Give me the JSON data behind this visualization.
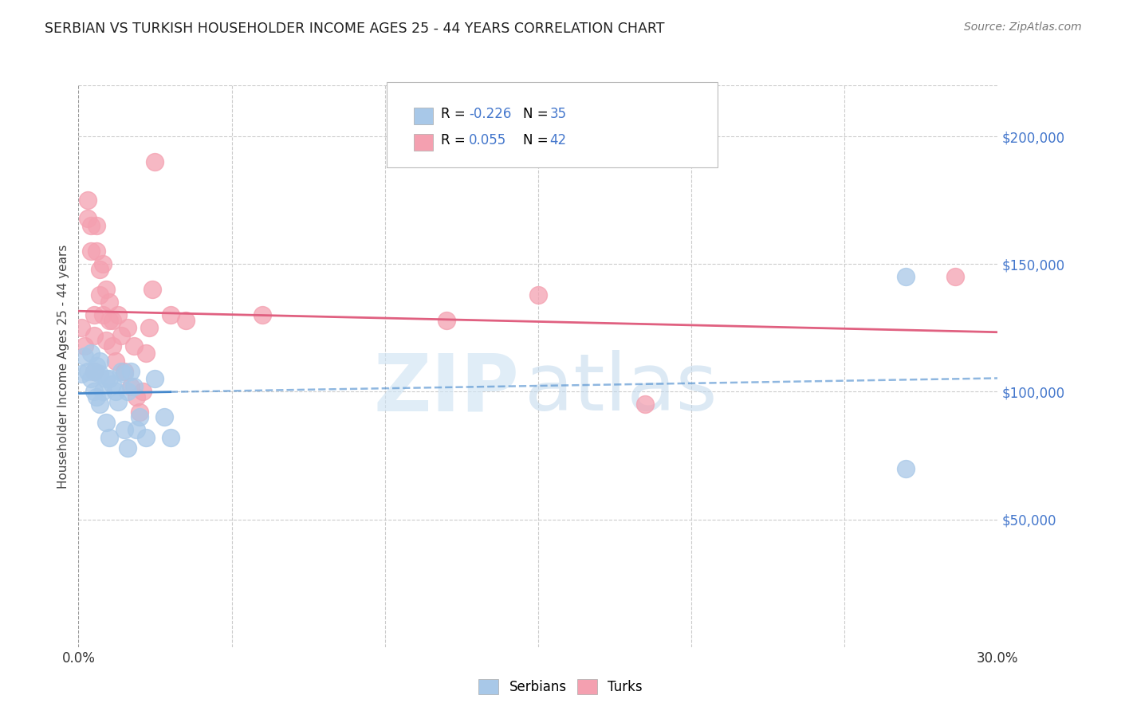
{
  "title": "SERBIAN VS TURKISH HOUSEHOLDER INCOME AGES 25 - 44 YEARS CORRELATION CHART",
  "source": "Source: ZipAtlas.com",
  "ylabel": "Householder Income Ages 25 - 44 years",
  "xlim": [
    0.0,
    0.3
  ],
  "ylim": [
    0,
    220000
  ],
  "yticks": [
    50000,
    100000,
    150000,
    200000
  ],
  "ytick_labels": [
    "$50,000",
    "$100,000",
    "$150,000",
    "$200,000"
  ],
  "serbian_color": "#a8c8e8",
  "turkish_color": "#f4a0b0",
  "serbian_line_color": "#4488cc",
  "turkish_line_color": "#e06080",
  "text_blue": "#4477cc",
  "background_color": "#ffffff",
  "grid_color": "#cccccc",
  "serbian_R": -0.226,
  "serbian_N": 35,
  "turkish_R": 0.055,
  "turkish_N": 42,
  "serbian_x": [
    0.001,
    0.002,
    0.003,
    0.004,
    0.004,
    0.005,
    0.005,
    0.006,
    0.006,
    0.007,
    0.007,
    0.007,
    0.008,
    0.009,
    0.009,
    0.01,
    0.01,
    0.011,
    0.012,
    0.013,
    0.014,
    0.015,
    0.015,
    0.016,
    0.016,
    0.017,
    0.018,
    0.019,
    0.02,
    0.022,
    0.025,
    0.028,
    0.03,
    0.27,
    0.27
  ],
  "serbian_y": [
    107000,
    114000,
    108000,
    115000,
    105000,
    108000,
    100000,
    110000,
    98000,
    112000,
    107000,
    95000,
    100000,
    105000,
    88000,
    105000,
    82000,
    103000,
    100000,
    96000,
    108000,
    107000,
    85000,
    100000,
    78000,
    108000,
    102000,
    85000,
    90000,
    82000,
    105000,
    90000,
    82000,
    145000,
    70000
  ],
  "turkish_x": [
    0.001,
    0.002,
    0.003,
    0.003,
    0.004,
    0.004,
    0.005,
    0.005,
    0.005,
    0.006,
    0.006,
    0.007,
    0.007,
    0.008,
    0.008,
    0.009,
    0.009,
    0.01,
    0.01,
    0.011,
    0.011,
    0.012,
    0.013,
    0.014,
    0.015,
    0.016,
    0.017,
    0.018,
    0.019,
    0.02,
    0.021,
    0.022,
    0.023,
    0.024,
    0.025,
    0.03,
    0.035,
    0.06,
    0.12,
    0.15,
    0.185,
    0.286
  ],
  "turkish_y": [
    125000,
    118000,
    175000,
    168000,
    165000,
    155000,
    130000,
    122000,
    108000,
    165000,
    155000,
    148000,
    138000,
    150000,
    130000,
    140000,
    120000,
    128000,
    135000,
    128000,
    118000,
    112000,
    130000,
    122000,
    108000,
    125000,
    102000,
    118000,
    98000,
    92000,
    100000,
    115000,
    125000,
    140000,
    190000,
    130000,
    128000,
    130000,
    128000,
    138000,
    95000,
    145000
  ]
}
